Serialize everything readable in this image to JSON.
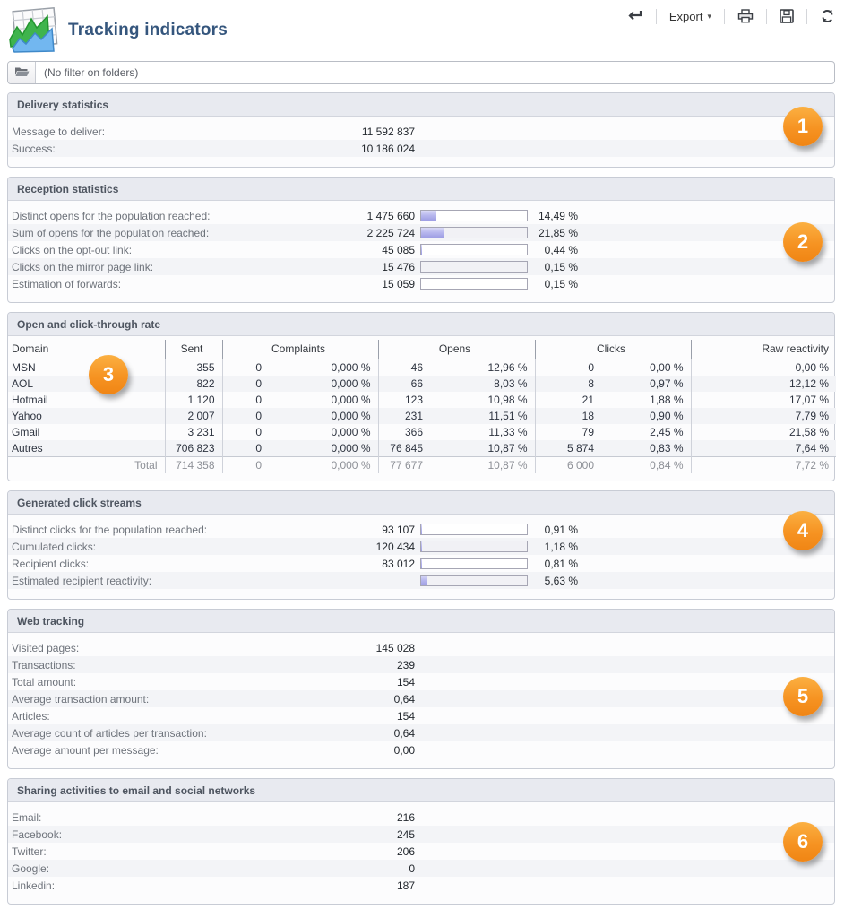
{
  "header": {
    "title": "Tracking indicators",
    "toolbar": {
      "export_label": "Export"
    }
  },
  "filter": {
    "text": "(No filter on folders)"
  },
  "colors": {
    "accent_orange": "#f69322",
    "bar_fill": "#b9b9ee",
    "title_blue": "#35567d"
  },
  "sections": {
    "delivery": {
      "title": "Delivery statistics",
      "badge": "1",
      "rows": [
        {
          "label": "Message to deliver:",
          "value": "11 592 837"
        },
        {
          "label": "Success:",
          "value": "10 186 024"
        }
      ]
    },
    "reception": {
      "title": "Reception statistics",
      "badge": "2",
      "rows": [
        {
          "label": "Distinct opens for the population reached:",
          "value": "1 475 660",
          "percent": 14.49,
          "percent_label": "14,49 %"
        },
        {
          "label": "Sum of opens for the population reached:",
          "value": "2 225 724",
          "percent": 21.85,
          "percent_label": "21,85 %"
        },
        {
          "label": "Clicks on the opt-out link:",
          "value": "45 085",
          "percent": 0.44,
          "percent_label": "0,44 %"
        },
        {
          "label": "Clicks on the mirror page link:",
          "value": "15 476",
          "percent": 0.15,
          "percent_label": "0,15 %"
        },
        {
          "label": "Estimation of forwards:",
          "value": "15 059",
          "percent": 0.15,
          "percent_label": "0,15 %"
        }
      ]
    },
    "open_click": {
      "title": "Open and click-through rate",
      "badge": "3",
      "table": {
        "headers": {
          "domain": "Domain",
          "sent": "Sent",
          "complaints": "Complaints",
          "opens": "Opens",
          "clicks": "Clicks",
          "raw": "Raw reactivity"
        },
        "rows": [
          {
            "domain": "MSN",
            "sent": "355",
            "complaints": "0",
            "complaints_pct": "0,000 %",
            "opens": "46",
            "opens_pct": "12,96 %",
            "clicks": "0",
            "clicks_pct": "0,00 %",
            "raw": "0,00 %"
          },
          {
            "domain": "AOL",
            "sent": "822",
            "complaints": "0",
            "complaints_pct": "0,000 %",
            "opens": "66",
            "opens_pct": "8,03 %",
            "clicks": "8",
            "clicks_pct": "0,97 %",
            "raw": "12,12 %"
          },
          {
            "domain": "Hotmail",
            "sent": "1 120",
            "complaints": "0",
            "complaints_pct": "0,000 %",
            "opens": "123",
            "opens_pct": "10,98 %",
            "clicks": "21",
            "clicks_pct": "1,88 %",
            "raw": "17,07 %"
          },
          {
            "domain": "Yahoo",
            "sent": "2 007",
            "complaints": "0",
            "complaints_pct": "0,000 %",
            "opens": "231",
            "opens_pct": "11,51 %",
            "clicks": "18",
            "clicks_pct": "0,90 %",
            "raw": "7,79 %"
          },
          {
            "domain": "Gmail",
            "sent": "3 231",
            "complaints": "0",
            "complaints_pct": "0,000 %",
            "opens": "366",
            "opens_pct": "11,33 %",
            "clicks": "79",
            "clicks_pct": "2,45 %",
            "raw": "21,58 %"
          },
          {
            "domain": "Autres",
            "sent": "706 823",
            "complaints": "0",
            "complaints_pct": "0,000 %",
            "opens": "76 845",
            "opens_pct": "10,87 %",
            "clicks": "5 874",
            "clicks_pct": "0,83 %",
            "raw": "7,64 %"
          }
        ],
        "total": {
          "label": "Total",
          "sent": "714 358",
          "complaints": "0",
          "complaints_pct": "0,000 %",
          "opens": "77 677",
          "opens_pct": "10,87 %",
          "clicks": "6 000",
          "clicks_pct": "0,84 %",
          "raw": "7,72 %"
        }
      }
    },
    "click_streams": {
      "title": "Generated click streams",
      "badge": "4",
      "rows": [
        {
          "label": "Distinct clicks for the population reached:",
          "value": "93 107",
          "percent": 0.91,
          "percent_label": "0,91 %"
        },
        {
          "label": "Cumulated clicks:",
          "value": "120 434",
          "percent": 1.18,
          "percent_label": "1,18 %"
        },
        {
          "label": "Recipient clicks:",
          "value": "83 012",
          "percent": 0.81,
          "percent_label": "0,81 %"
        },
        {
          "label": "Estimated recipient reactivity:",
          "value": "",
          "percent": 5.63,
          "percent_label": "5,63 %"
        }
      ]
    },
    "web_tracking": {
      "title": "Web tracking",
      "badge": "5",
      "rows": [
        {
          "label": "Visited pages:",
          "value": "145 028"
        },
        {
          "label": "Transactions:",
          "value": "239"
        },
        {
          "label": "Total amount:",
          "value": "154"
        },
        {
          "label": "Average transaction amount:",
          "value": "0,64"
        },
        {
          "label": "Articles:",
          "value": "154"
        },
        {
          "label": "Average count of articles per transaction:",
          "value": "0,64"
        },
        {
          "label": "Average amount per message:",
          "value": "0,00"
        }
      ]
    },
    "sharing": {
      "title": "Sharing activities to email and social networks",
      "badge": "6",
      "rows": [
        {
          "label": "Email:",
          "value": "216"
        },
        {
          "label": "Facebook:",
          "value": "245"
        },
        {
          "label": "Twitter:",
          "value": "206"
        },
        {
          "label": "Google:",
          "value": "0"
        },
        {
          "label": "Linkedin:",
          "value": "187"
        }
      ]
    }
  }
}
